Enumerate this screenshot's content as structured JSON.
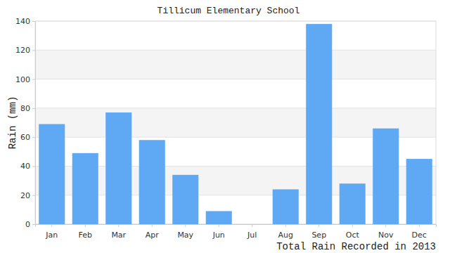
{
  "chart_data": {
    "type": "bar",
    "title": "Tillicum Elementary School",
    "y_label": "Rain (mm)",
    "x_label": "Total Rain Recorded in 2013",
    "categories": [
      "Jan",
      "Feb",
      "Mar",
      "Apr",
      "May",
      "Jun",
      "Jul",
      "Aug",
      "Sep",
      "Oct",
      "Nov",
      "Dec"
    ],
    "values": [
      69,
      49,
      77,
      58,
      34,
      9,
      0,
      24,
      138,
      28,
      66,
      45
    ],
    "color": "#5ea8f4",
    "ylim": [
      0,
      140
    ],
    "yticks": [
      0,
      20,
      40,
      60,
      80,
      100,
      120,
      140
    ],
    "grid": true
  }
}
